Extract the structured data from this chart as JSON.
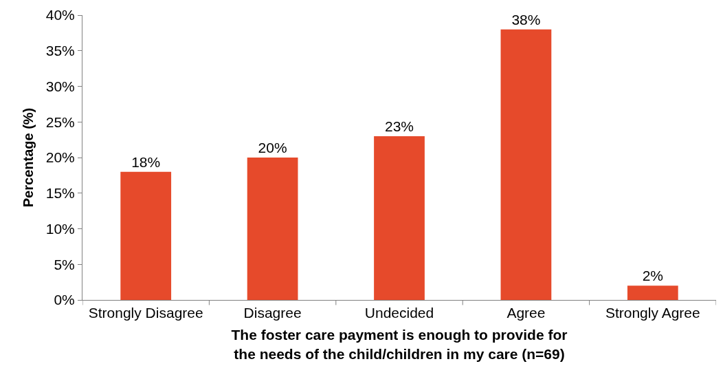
{
  "chart_data": {
    "type": "bar",
    "xlabel": "The foster care payment is enough to provide for the needs of the child/children in my care (n=69)",
    "ylabel": "Percentage (%)",
    "categories": [
      "Strongly Disagree",
      "Disagree",
      "Undecided",
      "Agree",
      "Strongly Agree"
    ],
    "values": [
      18,
      20,
      23,
      38,
      2
    ],
    "color": "#e64a2b",
    "value_labels": [
      "18%",
      "20%",
      "23%",
      "38%",
      "2%"
    ],
    "ylim": [
      0,
      40
    ],
    "yticks": [
      {
        "value": 0,
        "label": "0%"
      },
      {
        "value": 5,
        "label": "5%"
      },
      {
        "value": 10,
        "label": "10%"
      },
      {
        "value": 15,
        "label": "15%"
      },
      {
        "value": 20,
        "label": "20%"
      },
      {
        "value": 25,
        "label": "25%"
      },
      {
        "value": 30,
        "label": "30%"
      },
      {
        "value": 35,
        "label": "35%"
      },
      {
        "value": 40,
        "label": "40%"
      }
    ],
    "grid": false
  }
}
